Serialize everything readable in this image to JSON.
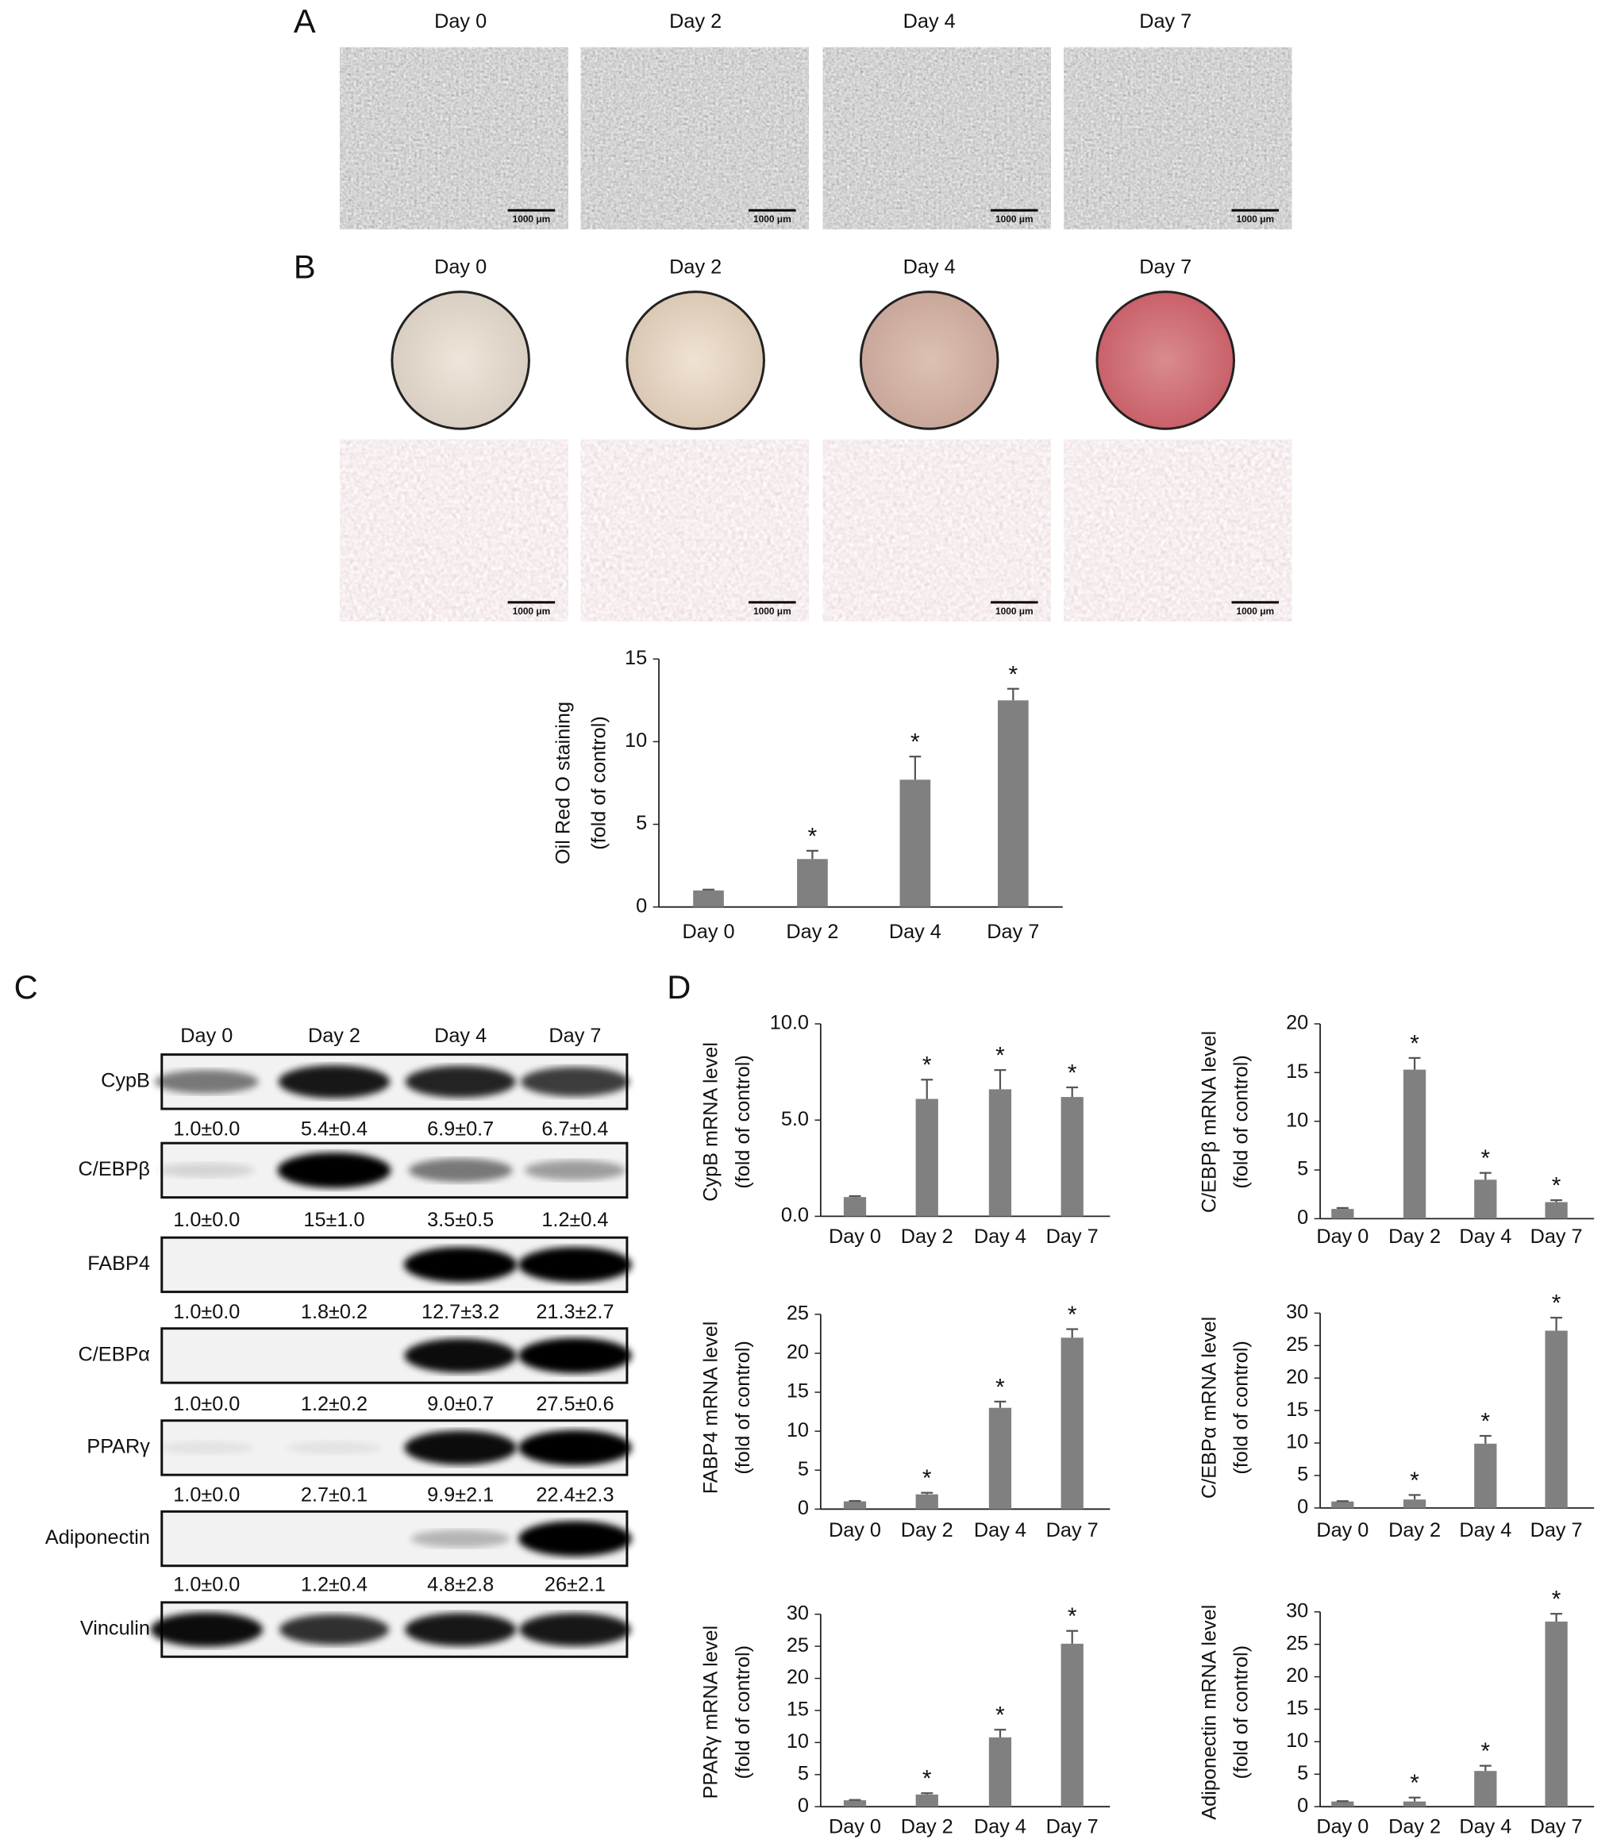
{
  "panel_labels": [
    "A",
    "B",
    "C",
    "D"
  ],
  "days": [
    "Day 0",
    "Day 2",
    "Day 4",
    "Day 7"
  ],
  "scale_bar": "1000 μm",
  "western_blot": {
    "proteins": [
      {
        "name": "CypB",
        "quantification": [
          "1.0±0.0",
          "5.4±0.4",
          "6.9±0.7",
          "6.7±0.4"
        ]
      },
      {
        "name": "C/EBPβ",
        "quantification": [
          "1.0±0.0",
          "15±1.0",
          "3.5±0.5",
          "1.2±0.4"
        ]
      },
      {
        "name": "FABP4",
        "quantification": [
          "1.0±0.0",
          "1.8±0.2",
          "12.7±3.2",
          "21.3±2.7"
        ]
      },
      {
        "name": "C/EBPα",
        "quantification": [
          "1.0±0.0",
          "1.2±0.2",
          "9.0±0.7",
          "27.5±0.6"
        ]
      },
      {
        "name": "PPARγ",
        "quantification": [
          "1.0±0.0",
          "2.7±0.1",
          "9.9±2.1",
          "22.4±2.3"
        ]
      },
      {
        "name": "Adiponectin",
        "quantification": [
          "1.0±0.0",
          "1.2±0.4",
          "4.8±2.8",
          "26±2.1"
        ]
      },
      {
        "name": "Vinculin"
      }
    ]
  },
  "chart_data": [
    {
      "type": "bar",
      "y_label": [
        "Oil Red O staining",
        "(fold of control)"
      ],
      "categories": [
        "Day 0",
        "Day 2",
        "Day 4",
        "Day 7"
      ],
      "values": [
        1,
        2.9,
        7.7,
        12.5
      ],
      "errors": [
        0.05,
        0.5,
        1.4,
        0.7
      ],
      "annotations": [
        null,
        "*",
        "*",
        "*"
      ],
      "color": "#808080",
      "ylim": [
        0,
        15
      ],
      "yticks": [
        0,
        5,
        10,
        15
      ]
    },
    {
      "type": "bar",
      "y_label": [
        "CypB mRNA level",
        "(fold of control)"
      ],
      "categories": [
        "Day 0",
        "Day 2",
        "Day 4",
        "Day 7"
      ],
      "values": [
        1,
        6.1,
        6.6,
        6.2
      ],
      "errors": [
        0.05,
        1.0,
        1.0,
        0.5
      ],
      "annotations": [
        null,
        "*",
        "*",
        "*"
      ],
      "color": "#808080",
      "ylim": [
        0,
        10
      ],
      "yticks": [
        {
          "value": 0,
          "label": "0.0"
        },
        {
          "value": 5,
          "label": "5.0"
        },
        {
          "value": 10,
          "label": "10.0"
        }
      ]
    },
    {
      "type": "bar",
      "y_label": [
        "C/EBPβ mRNA level",
        "(fold of control)"
      ],
      "categories": [
        "Day 0",
        "Day 2",
        "Day 4",
        "Day 7"
      ],
      "values": [
        1,
        15.3,
        4,
        1.7
      ],
      "errors": [
        0.1,
        1.2,
        0.7,
        0.2
      ],
      "annotations": [
        null,
        "*",
        "*",
        "*"
      ],
      "color": "#808080",
      "ylim": [
        0,
        20
      ],
      "yticks": [
        0,
        5,
        10,
        15,
        20
      ]
    },
    {
      "type": "bar",
      "y_label": [
        "FABP4 mRNA level",
        "(fold of control)"
      ],
      "categories": [
        "Day 0",
        "Day 2",
        "Day 4",
        "Day 7"
      ],
      "values": [
        1,
        1.9,
        13,
        22
      ],
      "errors": [
        0.05,
        0.2,
        0.8,
        1.1
      ],
      "annotations": [
        null,
        "*",
        "*",
        "*"
      ],
      "color": "#808080",
      "ylim": [
        0,
        25
      ],
      "yticks": [
        0,
        5,
        10,
        15,
        20,
        25
      ]
    },
    {
      "type": "bar",
      "y_label": [
        "C/EBPα mRNA level",
        "(fold of control)"
      ],
      "categories": [
        "Day 0",
        "Day 2",
        "Day 4",
        "Day 7"
      ],
      "values": [
        1,
        1.3,
        9.9,
        27.3
      ],
      "errors": [
        0.05,
        0.7,
        1.2,
        2
      ],
      "annotations": [
        null,
        "*",
        "*",
        "*"
      ],
      "color": "#808080",
      "ylim": [
        0,
        30
      ],
      "yticks": [
        0,
        5,
        10,
        15,
        20,
        25,
        30
      ]
    },
    {
      "type": "bar",
      "y_label": [
        "PPARγ mRNA level",
        "(fold of control)"
      ],
      "categories": [
        "Day 0",
        "Day 2",
        "Day 4",
        "Day 7"
      ],
      "values": [
        1,
        1.9,
        10.8,
        25.4
      ],
      "errors": [
        0.05,
        0.2,
        1.2,
        2
      ],
      "annotations": [
        null,
        "*",
        "*",
        "*"
      ],
      "color": "#808080",
      "ylim": [
        0,
        30
      ],
      "yticks": [
        0,
        5,
        10,
        15,
        20,
        25,
        30
      ]
    },
    {
      "type": "bar",
      "y_label": [
        "Adiponectin mRNA level",
        "(fold of control)"
      ],
      "categories": [
        "Day 0",
        "Day 2",
        "Day 4",
        "Day 7"
      ],
      "values": [
        0.8,
        0.8,
        5.5,
        28.5
      ],
      "errors": [
        0.05,
        0.6,
        0.8,
        1.2
      ],
      "annotations": [
        null,
        "*",
        "*",
        "*"
      ],
      "color": "#808080",
      "ylim": [
        0,
        30
      ],
      "yticks": [
        0,
        5,
        10,
        15,
        20,
        25,
        30
      ]
    }
  ]
}
